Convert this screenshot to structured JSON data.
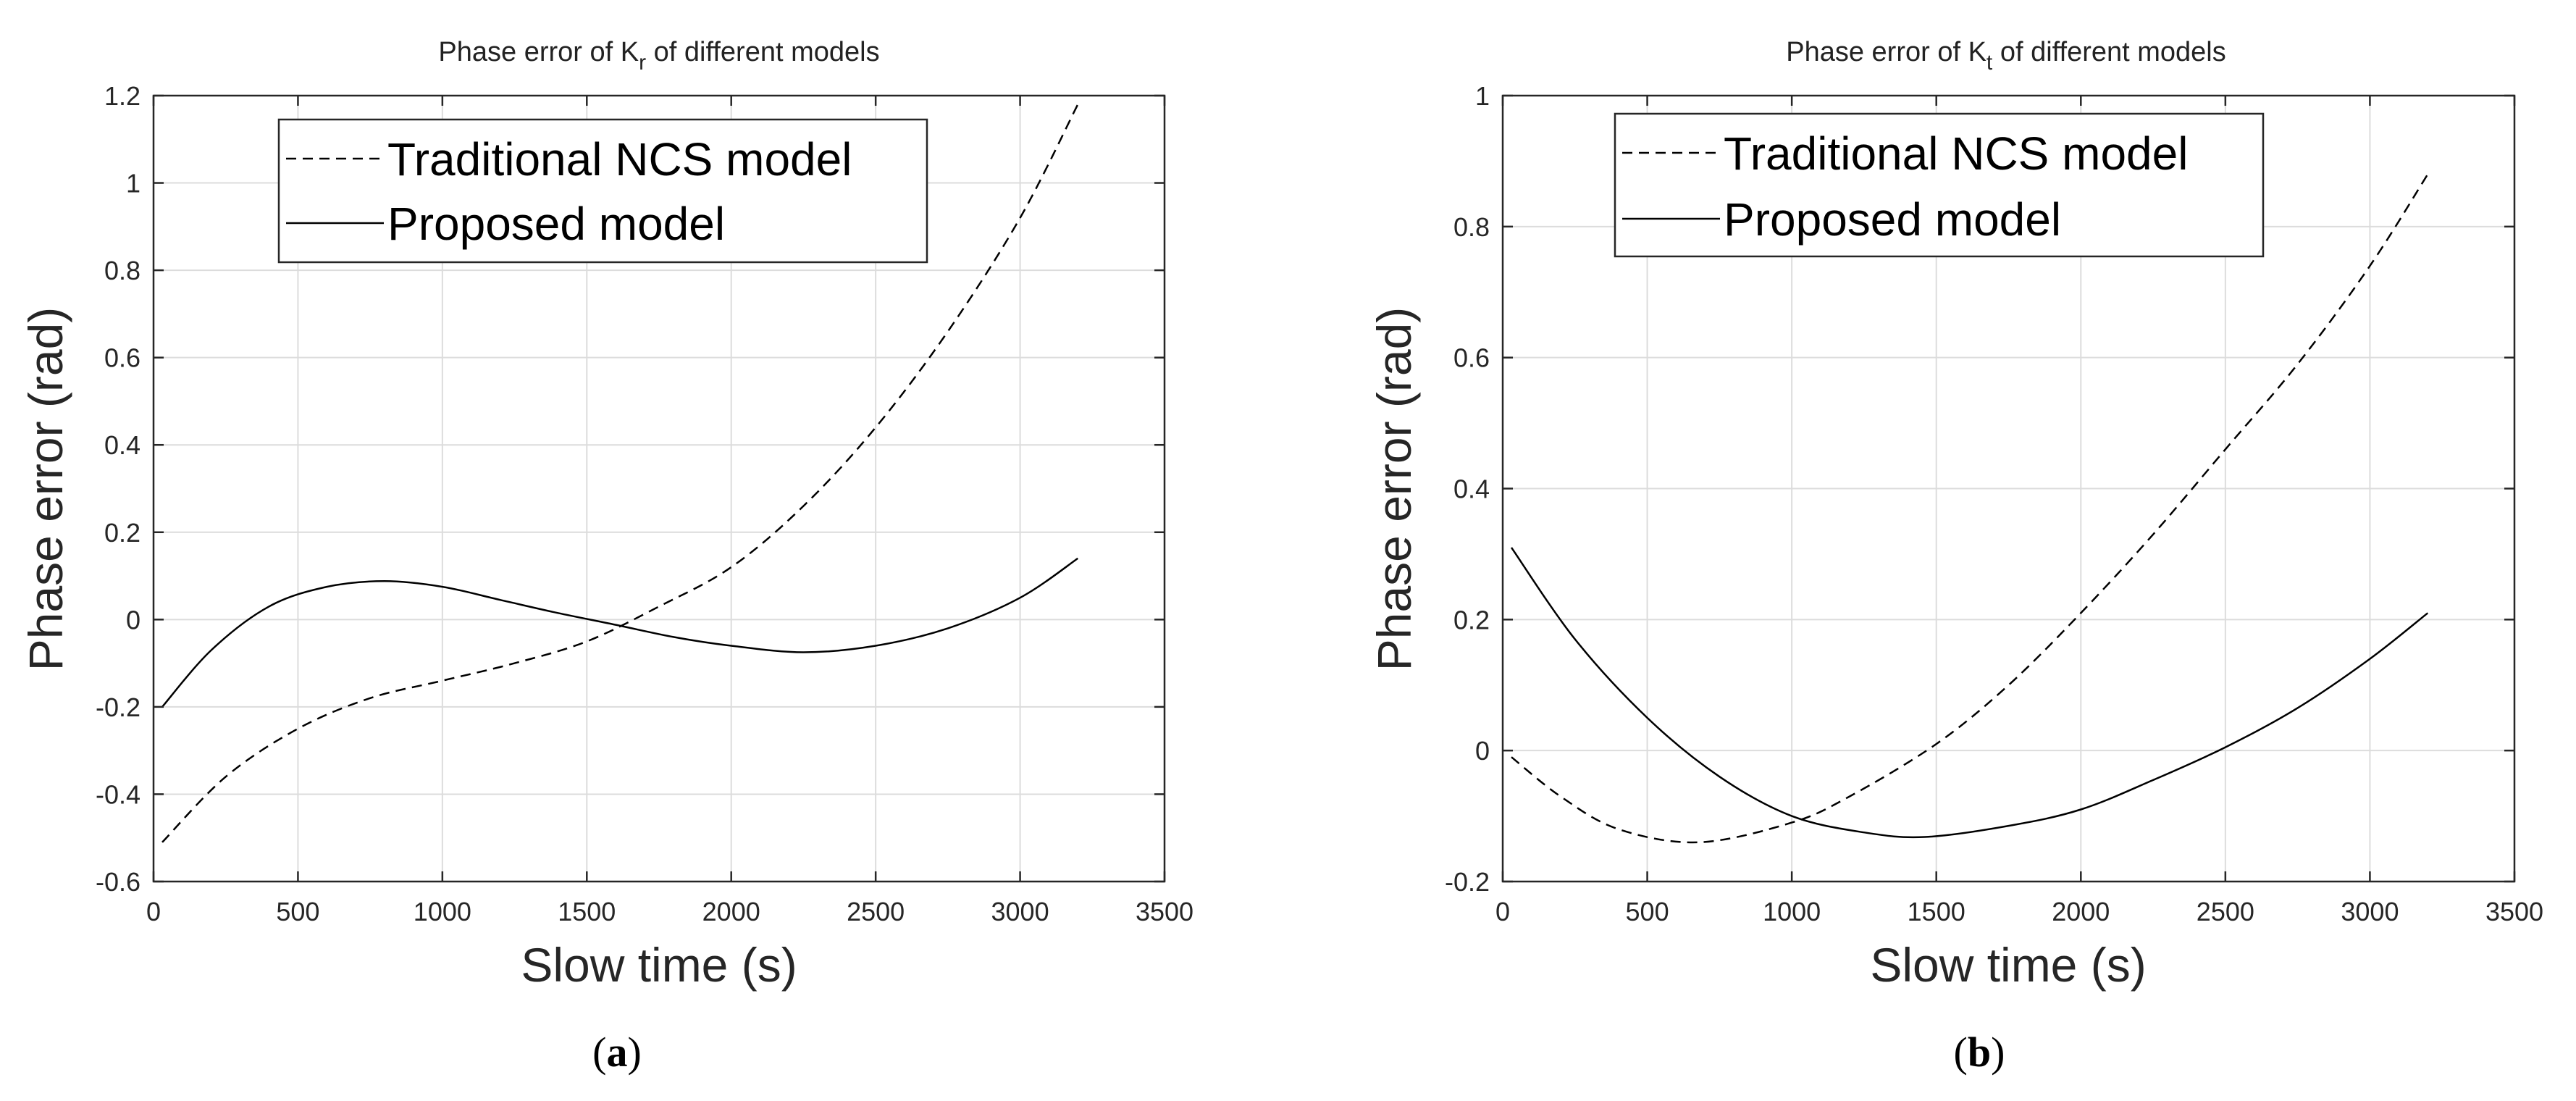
{
  "colors": {
    "axes": "#262626",
    "grid": "#dcdcdc",
    "line": "#000000",
    "background": "#ffffff"
  },
  "chart_data": [
    {
      "panel": "(a)",
      "panel_open": "(",
      "panel_letter": "a",
      "panel_close": ")",
      "type": "line",
      "title_prefix": "Phase error of K",
      "title_subscript": "r",
      "title_suffix": " of different models",
      "xlabel": "Slow time (s)",
      "ylabel": "Phase error (rad)",
      "xlim": [
        0,
        3500
      ],
      "ylim": [
        -0.6,
        1.2
      ],
      "xticks": [
        0,
        500,
        1000,
        1500,
        2000,
        2500,
        3000,
        3500
      ],
      "yticks": [
        -0.6,
        -0.4,
        -0.2,
        0,
        0.2,
        0.4,
        0.6,
        0.8,
        1,
        1.2
      ],
      "grid": true,
      "legend_position": "top-left",
      "series": [
        {
          "name": "Traditional NCS model",
          "style": "dashed",
          "x": [
            30,
            250,
            500,
            750,
            1000,
            1250,
            1500,
            1750,
            2000,
            2250,
            2500,
            2750,
            3000,
            3200
          ],
          "y": [
            -0.51,
            -0.36,
            -0.25,
            -0.18,
            -0.14,
            -0.1,
            -0.05,
            0.03,
            0.12,
            0.26,
            0.44,
            0.66,
            0.92,
            1.18
          ]
        },
        {
          "name": "Proposed model",
          "style": "solid",
          "x": [
            30,
            200,
            400,
            600,
            800,
            1000,
            1200,
            1400,
            1600,
            1800,
            2000,
            2250,
            2500,
            2750,
            3000,
            3200
          ],
          "y": [
            -0.2,
            -0.07,
            0.03,
            0.075,
            0.088,
            0.075,
            0.045,
            0.015,
            -0.012,
            -0.04,
            -0.06,
            -0.075,
            -0.06,
            -0.02,
            0.05,
            0.14
          ]
        }
      ]
    },
    {
      "panel": "(b)",
      "panel_open": "(",
      "panel_letter": "b",
      "panel_close": ")",
      "type": "line",
      "title_prefix": "Phase error of K",
      "title_subscript": "t",
      "title_suffix": " of different models",
      "xlabel": "Slow time (s)",
      "ylabel": "Phase error (rad)",
      "xlim": [
        0,
        3500
      ],
      "ylim": [
        -0.2,
        1
      ],
      "xticks": [
        0,
        500,
        1000,
        1500,
        2000,
        2500,
        3000,
        3500
      ],
      "yticks": [
        -0.2,
        0,
        0.2,
        0.4,
        0.6,
        0.8,
        1
      ],
      "grid": true,
      "legend_position": "top-left",
      "series": [
        {
          "name": "Traditional NCS model",
          "style": "dashed",
          "x": [
            30,
            200,
            400,
            680,
            1000,
            1200,
            1500,
            1750,
            2000,
            2250,
            2500,
            2750,
            3000,
            3200
          ],
          "y": [
            -0.01,
            -0.07,
            -0.12,
            -0.14,
            -0.11,
            -0.07,
            0.01,
            0.1,
            0.21,
            0.33,
            0.46,
            0.59,
            0.74,
            0.88
          ]
        },
        {
          "name": "Proposed model",
          "style": "solid",
          "x": [
            30,
            250,
            500,
            750,
            1000,
            1250,
            1460,
            1750,
            2000,
            2250,
            2500,
            2750,
            3000,
            3200
          ],
          "y": [
            0.31,
            0.17,
            0.05,
            -0.04,
            -0.1,
            -0.125,
            -0.132,
            -0.115,
            -0.09,
            -0.045,
            0.005,
            0.065,
            0.14,
            0.21
          ]
        }
      ]
    }
  ]
}
